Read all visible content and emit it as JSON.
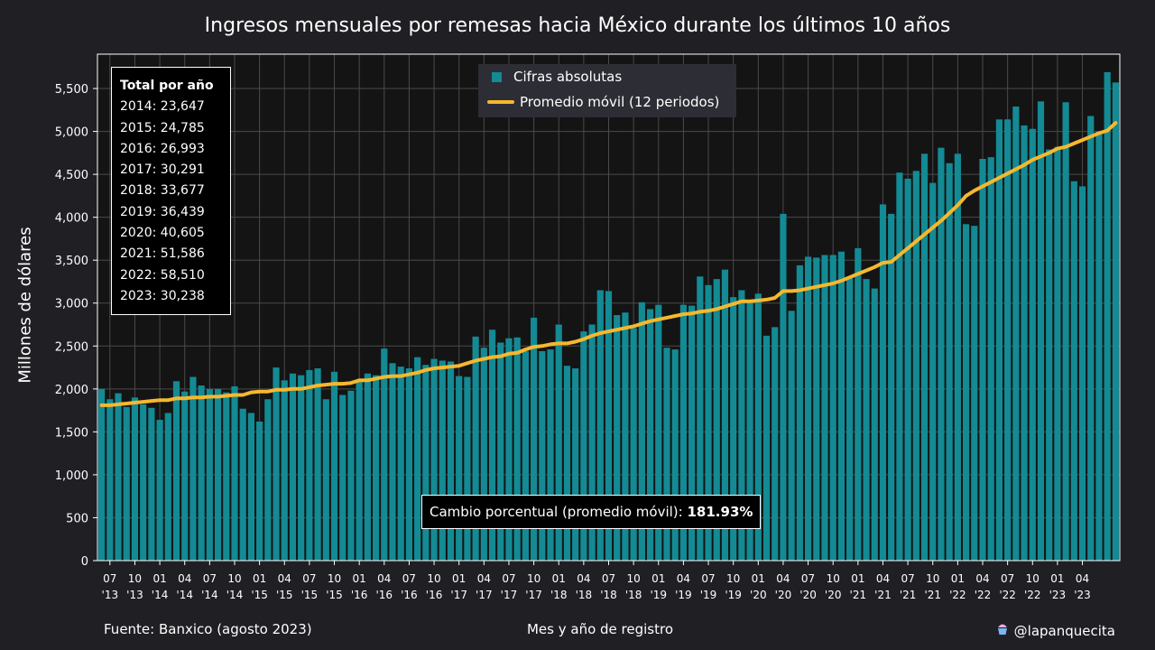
{
  "header": {
    "title": "Ingresos mensuales por remesas hacia México durante los últimos 10 años"
  },
  "footer": {
    "source": "Fuente: Banxico (agosto 2023)",
    "xlabel": "Mes y año de registro",
    "credit": "@lapanquecita",
    "credit_icon": "cupcake-icon"
  },
  "yearly_totals": {
    "heading": "Total por año",
    "items": [
      "2014: 23,647",
      "2015: 24,785",
      "2016: 26,993",
      "2017: 30,291",
      "2018: 33,677",
      "2019: 36,439",
      "2020: 40,605",
      "2021: 51,586",
      "2022: 58,510",
      "2023: 30,238"
    ]
  },
  "change_box": {
    "label": "Cambio porcentual (promedio móvil):",
    "value": "181.93%"
  },
  "colors": {
    "background": "#1f1f24",
    "plot_bg": "#141414",
    "bars": "#138a94",
    "moving_avg": "#f5b82e",
    "grid": "#4a4a4a"
  },
  "chart_data": {
    "type": "bar",
    "title": "Ingresos mensuales por remesas hacia México durante los últimos 10 años",
    "xlabel": "Mes y año de registro",
    "ylabel": "Millones de dólares",
    "ylim": [
      0,
      5900
    ],
    "yticks": [
      0,
      500,
      1000,
      1500,
      2000,
      2500,
      3000,
      3500,
      4000,
      4500,
      5000,
      5500
    ],
    "ytick_labels": [
      "0",
      "500",
      "1,000",
      "1,500",
      "2,000",
      "2,500",
      "3,000",
      "3,500",
      "4,000",
      "4,500",
      "5,000",
      "5,500"
    ],
    "grid": true,
    "legend_position": "top-center",
    "start_month": "2013-06",
    "xtick_labels": [
      [
        "07",
        "'13"
      ],
      [
        "10",
        "'13"
      ],
      [
        "01",
        "'14"
      ],
      [
        "04",
        "'14"
      ],
      [
        "07",
        "'14"
      ],
      [
        "10",
        "'14"
      ],
      [
        "01",
        "'15"
      ],
      [
        "04",
        "'15"
      ],
      [
        "07",
        "'15"
      ],
      [
        "10",
        "'15"
      ],
      [
        "01",
        "'16"
      ],
      [
        "04",
        "'16"
      ],
      [
        "07",
        "'16"
      ],
      [
        "10",
        "'16"
      ],
      [
        "01",
        "'17"
      ],
      [
        "04",
        "'17"
      ],
      [
        "07",
        "'17"
      ],
      [
        "10",
        "'17"
      ],
      [
        "01",
        "'18"
      ],
      [
        "04",
        "'18"
      ],
      [
        "07",
        "'18"
      ],
      [
        "10",
        "'18"
      ],
      [
        "01",
        "'19"
      ],
      [
        "04",
        "'19"
      ],
      [
        "07",
        "'19"
      ],
      [
        "10",
        "'19"
      ],
      [
        "01",
        "'20"
      ],
      [
        "04",
        "'20"
      ],
      [
        "07",
        "'20"
      ],
      [
        "10",
        "'20"
      ],
      [
        "01",
        "'21"
      ],
      [
        "04",
        "'21"
      ],
      [
        "07",
        "'21"
      ],
      [
        "10",
        "'21"
      ],
      [
        "01",
        "'22"
      ],
      [
        "04",
        "'22"
      ],
      [
        "07",
        "'22"
      ],
      [
        "10",
        "'22"
      ],
      [
        "01",
        "'23"
      ],
      [
        "04",
        "'23"
      ]
    ],
    "series": [
      {
        "name": "Cifras absolutas",
        "type": "bar",
        "values": [
          2000,
          1880,
          1950,
          1790,
          1900,
          1820,
          1780,
          1640,
          1720,
          2090,
          1970,
          2140,
          2040,
          2000,
          2000,
          1960,
          2030,
          1770,
          1720,
          1620,
          1880,
          2250,
          2100,
          2180,
          2160,
          2220,
          2240,
          1880,
          2200,
          1930,
          1980,
          2100,
          2180,
          2160,
          2470,
          2300,
          2260,
          2240,
          2370,
          2280,
          2350,
          2330,
          2320,
          2150,
          2140,
          2610,
          2480,
          2690,
          2540,
          2590,
          2600,
          2440,
          2830,
          2440,
          2460,
          2750,
          2270,
          2240,
          2670,
          2750,
          3150,
          3140,
          2860,
          2890,
          2710,
          3010,
          2930,
          2980,
          2480,
          2460,
          2980,
          2970,
          3310,
          3210,
          3280,
          3390,
          3070,
          3150,
          3020,
          3110,
          2620,
          2720,
          4040,
          2910,
          3440,
          3540,
          3530,
          3560,
          3560,
          3600,
          3310,
          3640,
          3280,
          3170,
          4150,
          4040,
          4520,
          4450,
          4540,
          4740,
          4400,
          4810,
          4630,
          4740,
          3920,
          3900,
          4680,
          4700,
          5140,
          5140,
          5290,
          5070,
          5030,
          5350,
          4790,
          4820,
          5340,
          4420,
          4360,
          5180,
          5000,
          5690,
          5570
        ]
      },
      {
        "name": "Promedio móvil (12 periodos)",
        "type": "line",
        "values": [
          1810,
          1810,
          1820,
          1830,
          1840,
          1850,
          1860,
          1870,
          1870,
          1890,
          1890,
          1900,
          1900,
          1910,
          1910,
          1920,
          1930,
          1930,
          1960,
          1970,
          1970,
          1990,
          1990,
          2000,
          2000,
          2020,
          2040,
          2050,
          2060,
          2060,
          2070,
          2100,
          2100,
          2120,
          2140,
          2150,
          2150,
          2170,
          2190,
          2220,
          2240,
          2250,
          2260,
          2270,
          2300,
          2330,
          2350,
          2370,
          2380,
          2410,
          2420,
          2460,
          2490,
          2500,
          2520,
          2530,
          2530,
          2550,
          2580,
          2620,
          2650,
          2670,
          2690,
          2710,
          2730,
          2760,
          2790,
          2810,
          2830,
          2850,
          2870,
          2880,
          2900,
          2910,
          2930,
          2960,
          2990,
          3020,
          3020,
          3030,
          3040,
          3060,
          3140,
          3140,
          3150,
          3170,
          3190,
          3210,
          3230,
          3260,
          3300,
          3340,
          3380,
          3420,
          3470,
          3480,
          3560,
          3640,
          3720,
          3800,
          3880,
          3960,
          4050,
          4140,
          4250,
          4310,
          4360,
          4410,
          4460,
          4510,
          4560,
          4610,
          4670,
          4710,
          4750,
          4800,
          4820,
          4860,
          4900,
          4940,
          4980,
          5010,
          5100
        ]
      }
    ]
  }
}
